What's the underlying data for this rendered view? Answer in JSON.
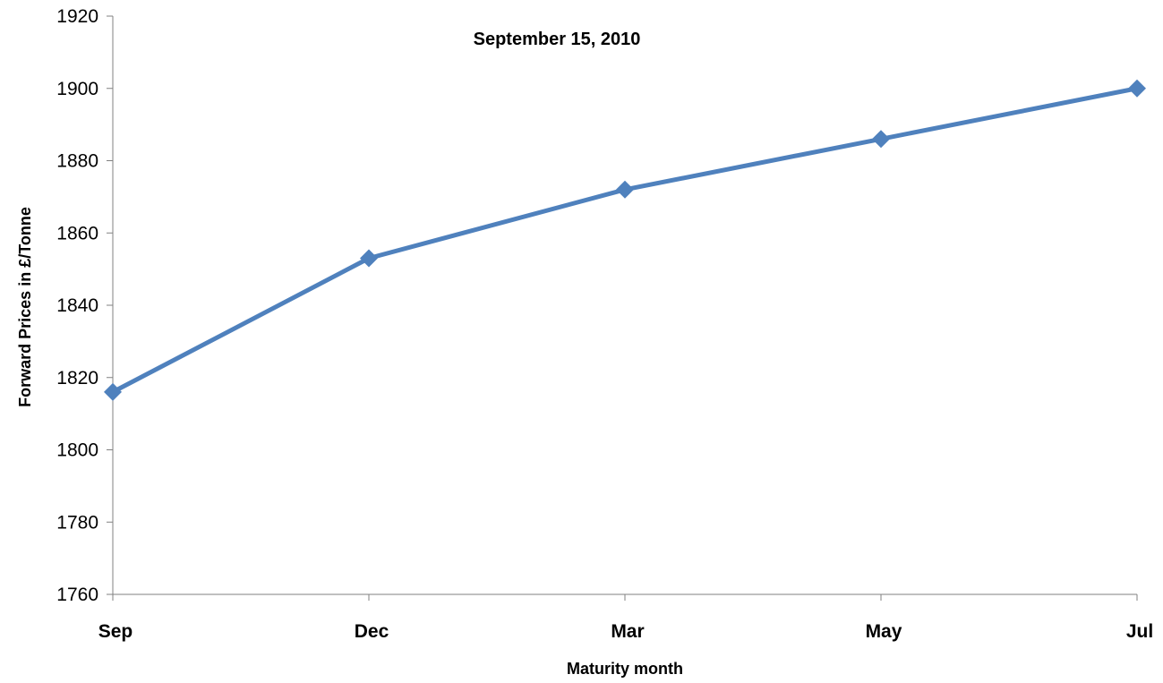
{
  "chart_data": {
    "type": "line",
    "title": "September 15, 2010",
    "xlabel": "Maturity month",
    "ylabel": "Forward Prices in £/Tonne",
    "categories": [
      "Sep",
      "Dec",
      "Mar",
      "May",
      "Jul"
    ],
    "series": [
      {
        "values": [
          1816,
          1853,
          1872,
          1886,
          1900
        ],
        "color": "#4F81BD",
        "marker": "diamond"
      }
    ],
    "ylim": [
      1760,
      1920
    ],
    "yticks": [
      1760,
      1780,
      1800,
      1820,
      1840,
      1860,
      1880,
      1900,
      1920
    ],
    "grid": false,
    "legend": "none"
  }
}
